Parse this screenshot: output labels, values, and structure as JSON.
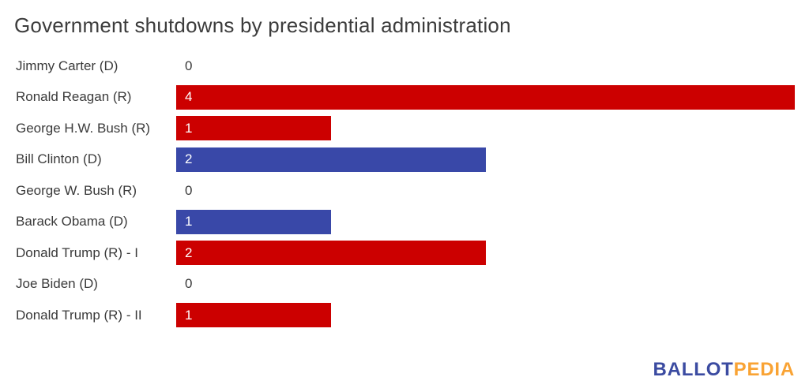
{
  "title": "Government shutdowns by presidential administration",
  "chart_data": {
    "type": "bar",
    "orientation": "horizontal",
    "title": "Government shutdowns by presidential administration",
    "categories": [
      "Jimmy Carter (D)",
      "Ronald Reagan (R)",
      "George H.W. Bush (R)",
      "Bill Clinton (D)",
      "George W. Bush (R)",
      "Barack Obama (D)",
      "Donald Trump (R) - I",
      "Joe Biden (D)",
      "Donald Trump (R) - II"
    ],
    "values": [
      0,
      4,
      1,
      2,
      0,
      1,
      2,
      0,
      1
    ],
    "parties": [
      "D",
      "R",
      "R",
      "D",
      "R",
      "D",
      "R",
      "D",
      "R"
    ],
    "xlim": [
      0,
      4
    ],
    "data_labels": true,
    "grid": false,
    "legend": false,
    "bar_colors": {
      "D": "#3948A8",
      "R": "#CC0000"
    }
  },
  "colors": {
    "background": "#FFFFFF",
    "title_text": "#3C3C3C",
    "label_text": "#3A3A3A",
    "bar_value_text": "#FFFFFF",
    "republican_bar": "#CC0000",
    "democrat_bar": "#3948A8"
  },
  "logo": {
    "part1": "BALLOT",
    "part2": "PEDIA",
    "part1_color": "#3B4BA1",
    "part2_color": "#F9A334"
  }
}
